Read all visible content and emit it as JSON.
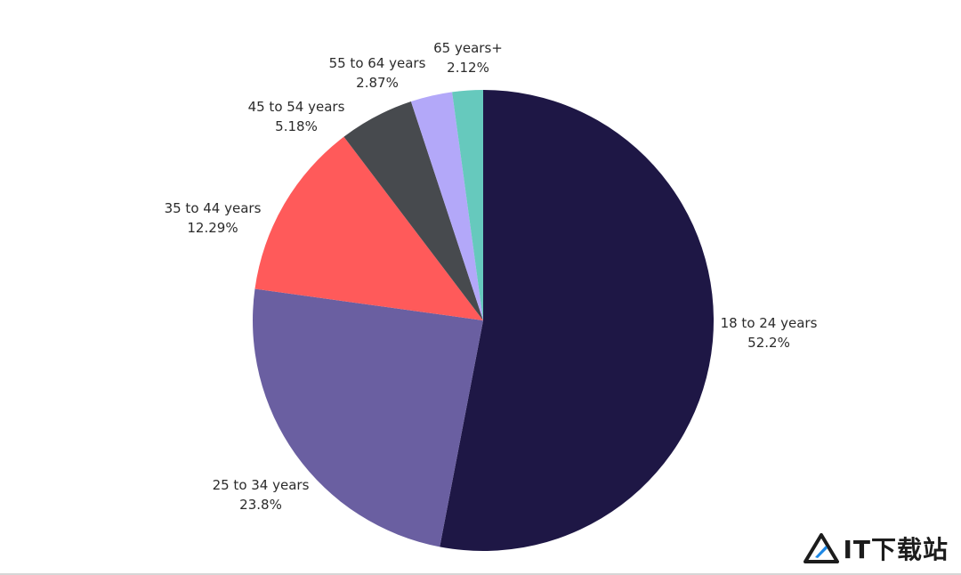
{
  "chart_data": {
    "type": "pie",
    "title": "",
    "start_angle_deg": 0,
    "direction": "clockwise",
    "slices": [
      {
        "label": "18 to 24 years",
        "value": 52.2,
        "value_label": "52.2%",
        "color": "#1e1745"
      },
      {
        "label": "25 to 34 years",
        "value": 23.8,
        "value_label": "23.8%",
        "color": "#6a5fa1"
      },
      {
        "label": "35 to 44 years",
        "value": 12.29,
        "value_label": "12.29%",
        "color": "#ff5a5a"
      },
      {
        "label": "45 to 54 years",
        "value": 5.18,
        "value_label": "5.18%",
        "color": "#474a4e"
      },
      {
        "label": "55 to 64 years",
        "value": 2.87,
        "value_label": "2.87%",
        "color": "#b3a8f9"
      },
      {
        "label": "65 years+",
        "value": 2.12,
        "value_label": "2.12%",
        "color": "#66c9bd"
      }
    ]
  },
  "watermark": {
    "text": "IT下载站",
    "icon": "triangle-logo-icon",
    "accent_color": "#1e88e5"
  }
}
